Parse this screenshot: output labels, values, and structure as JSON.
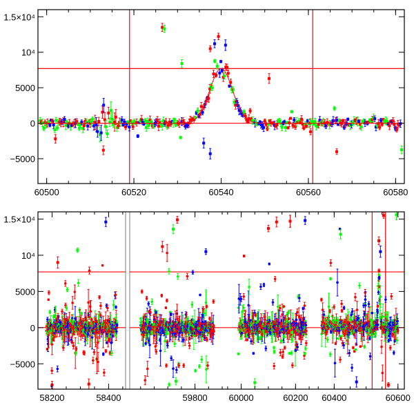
{
  "colors": {
    "red": "#ff0000",
    "blue": "#0000ff",
    "green": "#00ff00",
    "axis": "#000000"
  },
  "chart_data": [
    {
      "type": "scatter",
      "title": "",
      "xlabel": "",
      "ylabel": "",
      "xlim": [
        60498,
        60582
      ],
      "ylim": [
        -8500,
        16000
      ],
      "xticks": [
        "60500",
        "60520",
        "60540",
        "60560",
        "60580"
      ],
      "yticks": [
        {
          "value": -5000,
          "label": "−5000"
        },
        {
          "value": 0,
          "label": "0"
        },
        {
          "value": 5000,
          "label": "5000"
        },
        {
          "value": 10000,
          "label": "10⁴"
        },
        {
          "value": 15000,
          "label": "1.5×10⁴"
        }
      ],
      "reference_lines": {
        "vertical": [
          60519,
          60561
        ],
        "horizontal": [
          0,
          7700
        ]
      },
      "model_curve": {
        "peak_x": 60540,
        "peak_y": 7700,
        "width": 2.6,
        "baseline": 0
      },
      "series_colors": [
        "red",
        "blue",
        "green"
      ],
      "notable_points": [
        {
          "x": 60526.5,
          "y": 13500,
          "color": "red"
        },
        {
          "x": 60527,
          "y": 13300,
          "color": "green"
        },
        {
          "x": 60531,
          "y": 8400,
          "color": "green"
        },
        {
          "x": 60537.5,
          "y": 10500,
          "color": "red"
        },
        {
          "x": 60538.5,
          "y": 11200,
          "color": "blue"
        },
        {
          "x": 60541,
          "y": 11000,
          "color": "blue"
        },
        {
          "x": 60537.5,
          "y": -4300,
          "color": "blue"
        },
        {
          "x": 60551,
          "y": 6300,
          "color": "red"
        },
        {
          "x": 60566.5,
          "y": -4000,
          "color": "red"
        },
        {
          "x": 60513,
          "y": -3800,
          "color": "red"
        },
        {
          "x": 60502,
          "y": -2200,
          "color": "red"
        },
        {
          "x": 60536,
          "y": -2800,
          "color": "blue"
        },
        {
          "x": 60560.5,
          "y": -1200,
          "color": "red"
        }
      ]
    },
    {
      "type": "scatter",
      "title": "",
      "xlabel": "",
      "ylabel": "",
      "ylim": [
        -8500,
        16000
      ],
      "segments": [
        {
          "xlim": [
            58150,
            58460
          ],
          "xticks": [
            "58200",
            "58400"
          ]
        },
        {
          "xlim": [
            59560,
            59900
          ],
          "xticks": [
            "59800"
          ]
        },
        {
          "xlim": [
            59930,
            60260
          ],
          "xticks": [
            "60000",
            "60200"
          ]
        },
        {
          "xlim": [
            60330,
            60620
          ],
          "xticks": [
            "60400",
            "60600"
          ]
        }
      ],
      "yticks": [
        {
          "value": -5000,
          "label": "−5000"
        },
        {
          "value": 0,
          "label": "0"
        },
        {
          "value": 5000,
          "label": "5000"
        },
        {
          "value": 10000,
          "label": "10⁴"
        },
        {
          "value": 15000,
          "label": "1.5×10⁴"
        }
      ],
      "reference_lines": {
        "vertical": [
          60519,
          60561
        ],
        "horizontal": [
          0,
          7700
        ]
      },
      "data_ranges": [
        {
          "x": [
            58180,
            58430
          ],
          "segment": 0
        },
        {
          "x": [
            59600,
            59870
          ],
          "segment": 1
        },
        {
          "x": [
            59990,
            60240
          ],
          "segment": 2
        },
        {
          "x": [
            60360,
            60600
          ],
          "segment": 3
        }
      ],
      "series_colors": [
        "red",
        "blue",
        "green"
      ],
      "notable_points": [
        {
          "x": 58390,
          "y": 14600,
          "color": "blue"
        },
        {
          "x": 59735,
          "y": 14900,
          "color": "red"
        },
        {
          "x": 60130,
          "y": 14600,
          "color": "red"
        },
        {
          "x": 60180,
          "y": 14700,
          "color": "red"
        },
        {
          "x": 60235,
          "y": 14800,
          "color": "blue"
        },
        {
          "x": 59720,
          "y": 13600,
          "color": "green"
        },
        {
          "x": 60100,
          "y": 13700,
          "color": "red"
        },
        {
          "x": 60420,
          "y": 12900,
          "color": "green"
        },
        {
          "x": 60595,
          "y": 15600,
          "color": "green"
        },
        {
          "x": 60555,
          "y": 15500,
          "color": "red"
        },
        {
          "x": 59680,
          "y": 11200,
          "color": "red"
        },
        {
          "x": 58290,
          "y": 10700,
          "color": "green"
        },
        {
          "x": 60540,
          "y": 12000,
          "color": "red"
        },
        {
          "x": 60545,
          "y": 10500,
          "color": "blue"
        },
        {
          "x": 59840,
          "y": 10500,
          "color": "blue"
        },
        {
          "x": 58220,
          "y": 9000,
          "color": "red"
        },
        {
          "x": 58330,
          "y": -7800,
          "color": "red"
        },
        {
          "x": 58200,
          "y": -7900,
          "color": "red"
        },
        {
          "x": 60050,
          "y": -7600,
          "color": "green"
        },
        {
          "x": 60570,
          "y": -7900,
          "color": "red"
        },
        {
          "x": 60470,
          "y": -7500,
          "color": "blue"
        },
        {
          "x": 59730,
          "y": -7400,
          "color": "green"
        }
      ]
    }
  ]
}
